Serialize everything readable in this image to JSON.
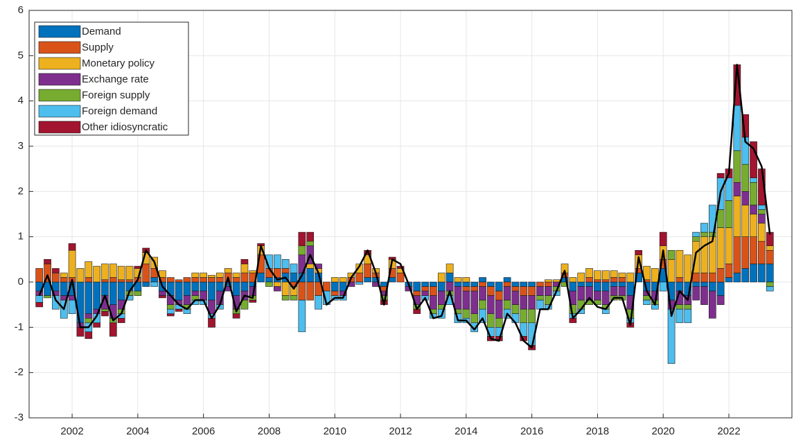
{
  "chart_data": {
    "type": "stacked_bar_line",
    "x": [
      2001,
      2001.25,
      2001.5,
      2001.75,
      2002,
      2002.25,
      2002.5,
      2002.75,
      2003,
      2003.25,
      2003.5,
      2003.75,
      2004,
      2004.25,
      2004.5,
      2004.75,
      2005,
      2005.25,
      2005.5,
      2005.75,
      2006,
      2006.25,
      2006.5,
      2006.75,
      2007,
      2007.25,
      2007.5,
      2007.75,
      2008,
      2008.25,
      2008.5,
      2008.75,
      2009,
      2009.25,
      2009.5,
      2009.75,
      2010,
      2010.25,
      2010.5,
      2010.75,
      2011,
      2011.25,
      2011.5,
      2011.75,
      2012,
      2012.25,
      2012.5,
      2012.75,
      2013,
      2013.25,
      2013.5,
      2013.75,
      2014,
      2014.25,
      2014.5,
      2014.75,
      2015,
      2015.25,
      2015.5,
      2015.75,
      2016,
      2016.25,
      2016.5,
      2016.75,
      2017,
      2017.25,
      2017.5,
      2017.75,
      2018,
      2018.25,
      2018.5,
      2018.75,
      2019,
      2019.25,
      2019.5,
      2019.75,
      2020,
      2020.25,
      2020.5,
      2020.75,
      2021,
      2021.25,
      2021.5,
      2021.75,
      2022,
      2022.25,
      2022.5,
      2022.75,
      2023,
      2023.25
    ],
    "series": [
      {
        "name": "Demand",
        "color": "#0072BD",
        "values": [
          -0.2,
          -0.3,
          -0.2,
          -0.3,
          -0.3,
          -0.9,
          -0.7,
          -0.6,
          -0.3,
          -0.5,
          -0.4,
          -0.2,
          -0.2,
          -0.1,
          0.1,
          -0.2,
          -0.3,
          -0.4,
          -0.3,
          -0.2,
          -0.2,
          -0.4,
          -0.2,
          -0.1,
          -0.3,
          -0.2,
          -0.1,
          0.2,
          0.1,
          0.1,
          0.2,
          0.2,
          0.2,
          0.3,
          0.2,
          0,
          -0.2,
          -0.2,
          0,
          0,
          0.1,
          0.1,
          -0.1,
          0.1,
          0,
          -0.1,
          -0.2,
          -0.1,
          -0.1,
          -0.2,
          0.2,
          -0.1,
          -0.1,
          -0.1,
          0.1,
          -0.1,
          -0.2,
          0.1,
          -0.1,
          -0.1,
          -0.1,
          0,
          0,
          0,
          0.1,
          -0.2,
          -0.1,
          -0.1,
          -0.2,
          -0.2,
          -0.1,
          -0.1,
          -0.3,
          0.2,
          -0.2,
          -0.2,
          0.3,
          -0.4,
          -0.2,
          -0.3,
          -0.1,
          -0.1,
          -0.2,
          -0.3,
          0.1,
          0.2,
          0.3,
          0.4,
          0.4,
          0.4
        ]
      },
      {
        "name": "Supply",
        "color": "#D95319",
        "values": [
          0.3,
          0.4,
          0.2,
          0.1,
          0.1,
          0,
          0.1,
          0,
          0.05,
          0.1,
          0.05,
          0.05,
          0.1,
          0.4,
          0.2,
          0.1,
          0.1,
          0.05,
          0.1,
          0.1,
          0.1,
          0.1,
          0.1,
          0.2,
          0.1,
          0.2,
          0.2,
          0.4,
          0.2,
          0.2,
          0.1,
          -0.1,
          -0.4,
          -0.4,
          -0.3,
          -0.2,
          -0.1,
          0,
          0.1,
          0.2,
          0.3,
          0.1,
          -0.1,
          0.2,
          0.2,
          0,
          -0.1,
          -0.1,
          -0.2,
          0,
          0,
          0,
          -0.1,
          -0.1,
          -0.1,
          -0.2,
          -0.2,
          -0.1,
          -0.1,
          -0.2,
          -0.2,
          -0.1,
          -0.1,
          0,
          0.1,
          0,
          0,
          0.1,
          0.05,
          0.05,
          0.1,
          0.1,
          0,
          0.1,
          0.05,
          0,
          0.2,
          0,
          0.1,
          0,
          0.2,
          0.2,
          0.2,
          0.3,
          0.3,
          0.8,
          0.7,
          0.6,
          0.5,
          0.3
        ]
      },
      {
        "name": "Monetary policy",
        "color": "#EDB120",
        "values": [
          0,
          0,
          0,
          0.1,
          0.6,
          0.3,
          0.35,
          0.35,
          0.35,
          0.3,
          0.3,
          0.3,
          0.2,
          0.25,
          0.25,
          0.15,
          0,
          0,
          0,
          0.1,
          0.1,
          0.05,
          0.1,
          0.1,
          0.1,
          0.2,
          0.05,
          0.2,
          0,
          -0.1,
          -0.3,
          -0.2,
          0,
          0.1,
          0.1,
          0,
          0.1,
          0.1,
          0.1,
          0.2,
          0.2,
          0.1,
          0,
          0.2,
          0.1,
          0,
          0,
          0,
          0,
          0.2,
          0.2,
          0.1,
          0.1,
          0,
          0,
          0,
          0,
          0,
          0,
          0,
          0,
          0,
          0.05,
          0.05,
          0.2,
          0.1,
          0.2,
          0.2,
          0.2,
          0.2,
          0.15,
          0.1,
          0.2,
          0.3,
          0.3,
          0.3,
          0.3,
          0.5,
          0.6,
          0.6,
          0.7,
          0.8,
          0.8,
          0.9,
          0.8,
          0.9,
          0.7,
          0.5,
          0.4,
          0.1
        ]
      },
      {
        "name": "Exchange rate",
        "color": "#7E2F8E",
        "values": [
          -0.1,
          0,
          -0.1,
          -0.1,
          -0.1,
          -0.1,
          -0.1,
          -0.1,
          -0.3,
          -0.3,
          -0.2,
          0,
          0,
          0,
          0,
          -0.1,
          -0.2,
          -0.1,
          -0.2,
          -0.1,
          -0.2,
          -0.3,
          -0.3,
          -0.1,
          -0.3,
          -0.2,
          -0.2,
          0,
          0,
          -0.1,
          0,
          0,
          0.4,
          0.4,
          0.1,
          0,
          0,
          -0.1,
          -0.1,
          0,
          0,
          -0.1,
          -0.1,
          0,
          0,
          -0.1,
          -0.2,
          -0.1,
          -0.3,
          -0.3,
          -0.2,
          -0.5,
          -0.4,
          -0.5,
          -0.3,
          -0.4,
          -0.4,
          -0.3,
          -0.3,
          -0.3,
          -0.3,
          -0.2,
          -0.2,
          -0.1,
          0,
          -0.3,
          -0.3,
          -0.3,
          -0.2,
          -0.3,
          -0.2,
          -0.2,
          -0.3,
          0,
          -0.1,
          -0.2,
          0,
          -0.2,
          -0.3,
          -0.2,
          -0.3,
          -0.4,
          -0.6,
          -0.2,
          0,
          0.3,
          0.3,
          0.2,
          0.2,
          0
        ]
      },
      {
        "name": "Foreign supply",
        "color": "#77AC30",
        "values": [
          0,
          -0.05,
          0,
          0,
          0,
          0,
          -0.1,
          0,
          -0.05,
          -0.1,
          -0.1,
          -0.1,
          -0.1,
          0,
          0,
          0,
          -0.1,
          0,
          -0.1,
          -0.1,
          0,
          0,
          0,
          0,
          -0.1,
          -0.2,
          -0.1,
          0,
          -0.1,
          0,
          -0.1,
          -0.1,
          0.2,
          0.1,
          0,
          0,
          0,
          0,
          0,
          0,
          0,
          0,
          -0.1,
          0,
          0,
          0,
          -0.1,
          0,
          -0.1,
          -0.1,
          -0.1,
          -0.1,
          -0.2,
          -0.2,
          -0.2,
          -0.3,
          -0.2,
          -0.2,
          -0.2,
          -0.3,
          -0.3,
          -0.1,
          -0.2,
          -0.1,
          -0.1,
          -0.2,
          -0.2,
          -0.1,
          -0.1,
          -0.1,
          -0.1,
          -0.1,
          -0.2,
          0,
          -0.1,
          -0.1,
          0,
          0.2,
          -0.1,
          -0.1,
          0.1,
          0.1,
          0.1,
          0.4,
          0.6,
          0.7,
          0.6,
          0.5,
          0.1,
          -0.1
        ]
      },
      {
        "name": "Foreign demand",
        "color": "#4DBEEE",
        "values": [
          -0.15,
          0,
          -0.3,
          -0.4,
          -0.3,
          0,
          -0.2,
          -0.2,
          0,
          0,
          -0.1,
          -0.1,
          0,
          0,
          -0.1,
          0,
          -0.1,
          -0.1,
          -0.1,
          -0.1,
          -0.1,
          -0.1,
          -0.1,
          0,
          0,
          0,
          0,
          0,
          0.3,
          0.3,
          0.2,
          0.2,
          -0.7,
          0,
          -0.3,
          -0.3,
          -0.1,
          -0.1,
          0,
          -0.05,
          0,
          0,
          0,
          0,
          0,
          0,
          0,
          -0.1,
          -0.1,
          -0.2,
          -0.2,
          -0.2,
          -0.1,
          -0.2,
          -0.3,
          -0.2,
          -0.2,
          -0.2,
          -0.2,
          -0.3,
          -0.5,
          -0.2,
          -0.1,
          -0.1,
          0,
          -0.1,
          -0.1,
          0,
          0,
          -0.1,
          0,
          0,
          -0.1,
          0,
          -0.1,
          -0.1,
          -0.2,
          -1.2,
          -0.3,
          -0.3,
          0.1,
          0.2,
          0.6,
          0.7,
          0.5,
          1.0,
          0.6,
          0.1,
          0.1,
          -0.1
        ]
      },
      {
        "name": "Other idiosyncratic",
        "color": "#A2142F",
        "values": [
          -0.1,
          0.1,
          0.1,
          0,
          0.15,
          -0.2,
          -0.15,
          -0.1,
          -0.1,
          -0.3,
          -0.1,
          0,
          0.05,
          0.1,
          0,
          -0.05,
          -0.05,
          -0.05,
          0,
          0,
          0,
          -0.2,
          0,
          0,
          -0.1,
          0.1,
          -0.05,
          0.05,
          0,
          0,
          0,
          0,
          0.3,
          0.2,
          0,
          0,
          0,
          0,
          0,
          0,
          0.1,
          0,
          -0.1,
          0.05,
          0.05,
          0,
          -0.1,
          0,
          0,
          0,
          0,
          0,
          0,
          0,
          0,
          -0.1,
          -0.1,
          0,
          0,
          -0.1,
          -0.1,
          0,
          0,
          0,
          0,
          -0.1,
          0,
          0,
          0,
          0,
          0,
          0,
          -0.1,
          0.1,
          0,
          0,
          0.3,
          0,
          0,
          0,
          0,
          0,
          0,
          0.1,
          0.2,
          0.9,
          0.5,
          0.8,
          0.8,
          0.3
        ]
      }
    ],
    "line": {
      "color": "#000000",
      "values": [
        -0.3,
        0.15,
        -0.4,
        -0.6,
        0.05,
        -1.0,
        -1.0,
        -0.75,
        -0.3,
        -0.85,
        -0.7,
        -0.2,
        0.05,
        0.7,
        0.45,
        -0.1,
        -0.3,
        -0.5,
        -0.6,
        -0.4,
        -0.4,
        -0.8,
        -0.5,
        0.1,
        -0.65,
        -0.3,
        -0.35,
        0.8,
        0.3,
        0.05,
        0.1,
        -0.15,
        0.15,
        0.6,
        0.2,
        -0.5,
        -0.35,
        -0.35,
        0.1,
        0.35,
        0.7,
        0.2,
        -0.5,
        0.5,
        0.4,
        -0.05,
        -0.6,
        -0.35,
        -0.8,
        -0.75,
        -0.2,
        -0.85,
        -0.85,
        -1.05,
        -0.8,
        -1.25,
        -1.3,
        -0.7,
        -0.9,
        -1.3,
        -1.45,
        -0.6,
        -0.6,
        -0.2,
        0.25,
        -0.8,
        -0.6,
        -0.35,
        -0.55,
        -0.6,
        -0.35,
        -0.35,
        -0.95,
        0.55,
        -0.2,
        -0.5,
        0.7,
        -0.75,
        -0.2,
        -0.4,
        0.65,
        0.8,
        0.9,
        2.0,
        2.4,
        4.8,
        3.1,
        2.95,
        2.55,
        1.05
      ]
    },
    "xlim": [
      2000.69,
      2023.92
    ],
    "xticks": [
      2002,
      2004,
      2006,
      2008,
      2010,
      2012,
      2014,
      2016,
      2018,
      2020,
      2022
    ],
    "ylim": [
      -3,
      6
    ],
    "yticks": [
      -3,
      -2,
      -1,
      0,
      1,
      2,
      3,
      4,
      5,
      6
    ],
    "grid": true,
    "legend": "upper left"
  }
}
